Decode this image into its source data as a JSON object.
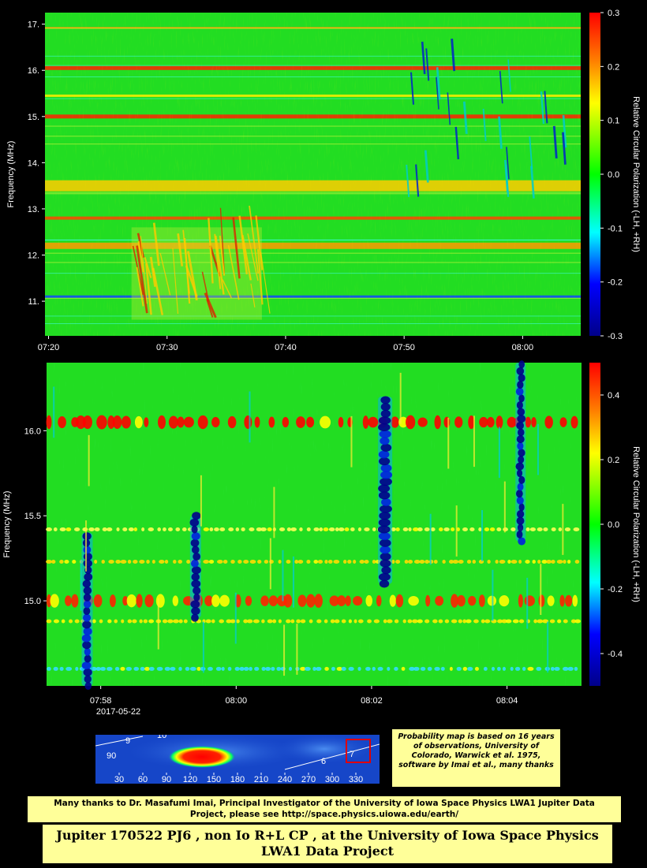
{
  "chart_data": [
    {
      "type": "heatmap",
      "ylabel": "Frequency (MHz)",
      "colorbar_label": "Relative Circular Polarization (-LH, +RH)",
      "x_ticks": [
        "07:20",
        "07:30",
        "07:40",
        "07:50",
        "08:00"
      ],
      "x_tick_minutes": [
        0,
        10,
        20,
        30,
        40
      ],
      "x_range_minutes": [
        -0.3,
        44.9
      ],
      "y_ticks": [
        "11.",
        "12.",
        "13.",
        "14.",
        "15.",
        "16.",
        "17."
      ],
      "y_tick_values": [
        11,
        12,
        13,
        14,
        15,
        16,
        17
      ],
      "ylim": [
        10.25,
        17.25
      ],
      "colorbar_ticks": [
        "0.3",
        "0.2",
        "0.1",
        "0.0",
        "-0.1",
        "-0.2",
        "-0.3"
      ],
      "colorbar_values": [
        0.3,
        0.2,
        0.1,
        0.0,
        -0.1,
        -0.2,
        -0.3
      ],
      "crange": [
        -0.3,
        0.3
      ],
      "bands_mhz": [
        16.05,
        15.0,
        13.5,
        12.8,
        12.2,
        11.1,
        15.45,
        16.92
      ],
      "burst_region": "07:27-07:38, 10.6-12.6 MHz",
      "burst_time_range": "07:27-07:38",
      "burst_freq_range_mhz": [
        10.6,
        12.6
      ]
    },
    {
      "type": "heatmap",
      "ylabel": "Frequency (MHz)",
      "colorbar_label": "Relative Circular Polarization (-LH, +RH)",
      "x_ticks": [
        "07:58",
        "08:00",
        "08:02",
        "08:04"
      ],
      "x_tick_minutes": [
        0,
        2,
        4,
        6
      ],
      "x_range_minutes": [
        -0.8,
        7.1
      ],
      "date": "2017-05-22",
      "y_ticks": [
        "15.0",
        "15.5",
        "16.0"
      ],
      "y_tick_values": [
        15.0,
        15.5,
        16.0
      ],
      "ylim": [
        14.5,
        16.4
      ],
      "colorbar_ticks": [
        "0.4",
        "0.2",
        "0.0",
        "-0.2",
        "-0.4"
      ],
      "colorbar_values": [
        0.4,
        0.2,
        0.0,
        -0.2,
        -0.4
      ],
      "crange": [
        -0.5,
        0.5
      ],
      "bands_mhz": [
        16.05,
        15.0,
        14.88,
        15.42,
        15.23,
        14.6
      ],
      "lh_bursts": [
        {
          "time": "08:02.2",
          "freq_mhz": [
            15.1,
            16.2
          ]
        },
        {
          "time": "08:04.2",
          "freq_mhz": [
            15.35,
            16.4
          ]
        },
        {
          "time": "07:59.4",
          "freq_mhz": [
            14.9,
            15.5
          ]
        },
        {
          "time": "07:57.8",
          "freq_mhz": [
            14.5,
            15.4
          ]
        }
      ]
    },
    {
      "type": "heatmap",
      "x_ticks": [
        "30",
        "60",
        "90",
        "120",
        "150",
        "180",
        "210",
        "240",
        "270",
        "300",
        "330"
      ],
      "y_ticks": [
        "90"
      ],
      "curve_labels": [
        "9",
        "10",
        "7",
        "6"
      ],
      "hotspot_range": [
        100,
        170
      ],
      "current_position_range": [
        320,
        350
      ]
    }
  ],
  "notes": {
    "probability": "Probability map is based on 16 years of observations, University of Colorado, Warwick et al. 1975, software by Imai et al., many thanks",
    "thanks": "Many thanks to Dr. Masafumi Imai, Principal Investigator of the University of Iowa Space Physics LWA1 Jupiter Data Project, please see http://space.physics.uiowa.edu/earth/",
    "title": "Jupiter 170522 PJ6 , non Io R+L CP , at the University of Iowa Space Physics LWA1 Data Project"
  },
  "colors": {
    "background": "#000000",
    "note_fill": "#ffff99",
    "marker_box": "#e00000"
  }
}
